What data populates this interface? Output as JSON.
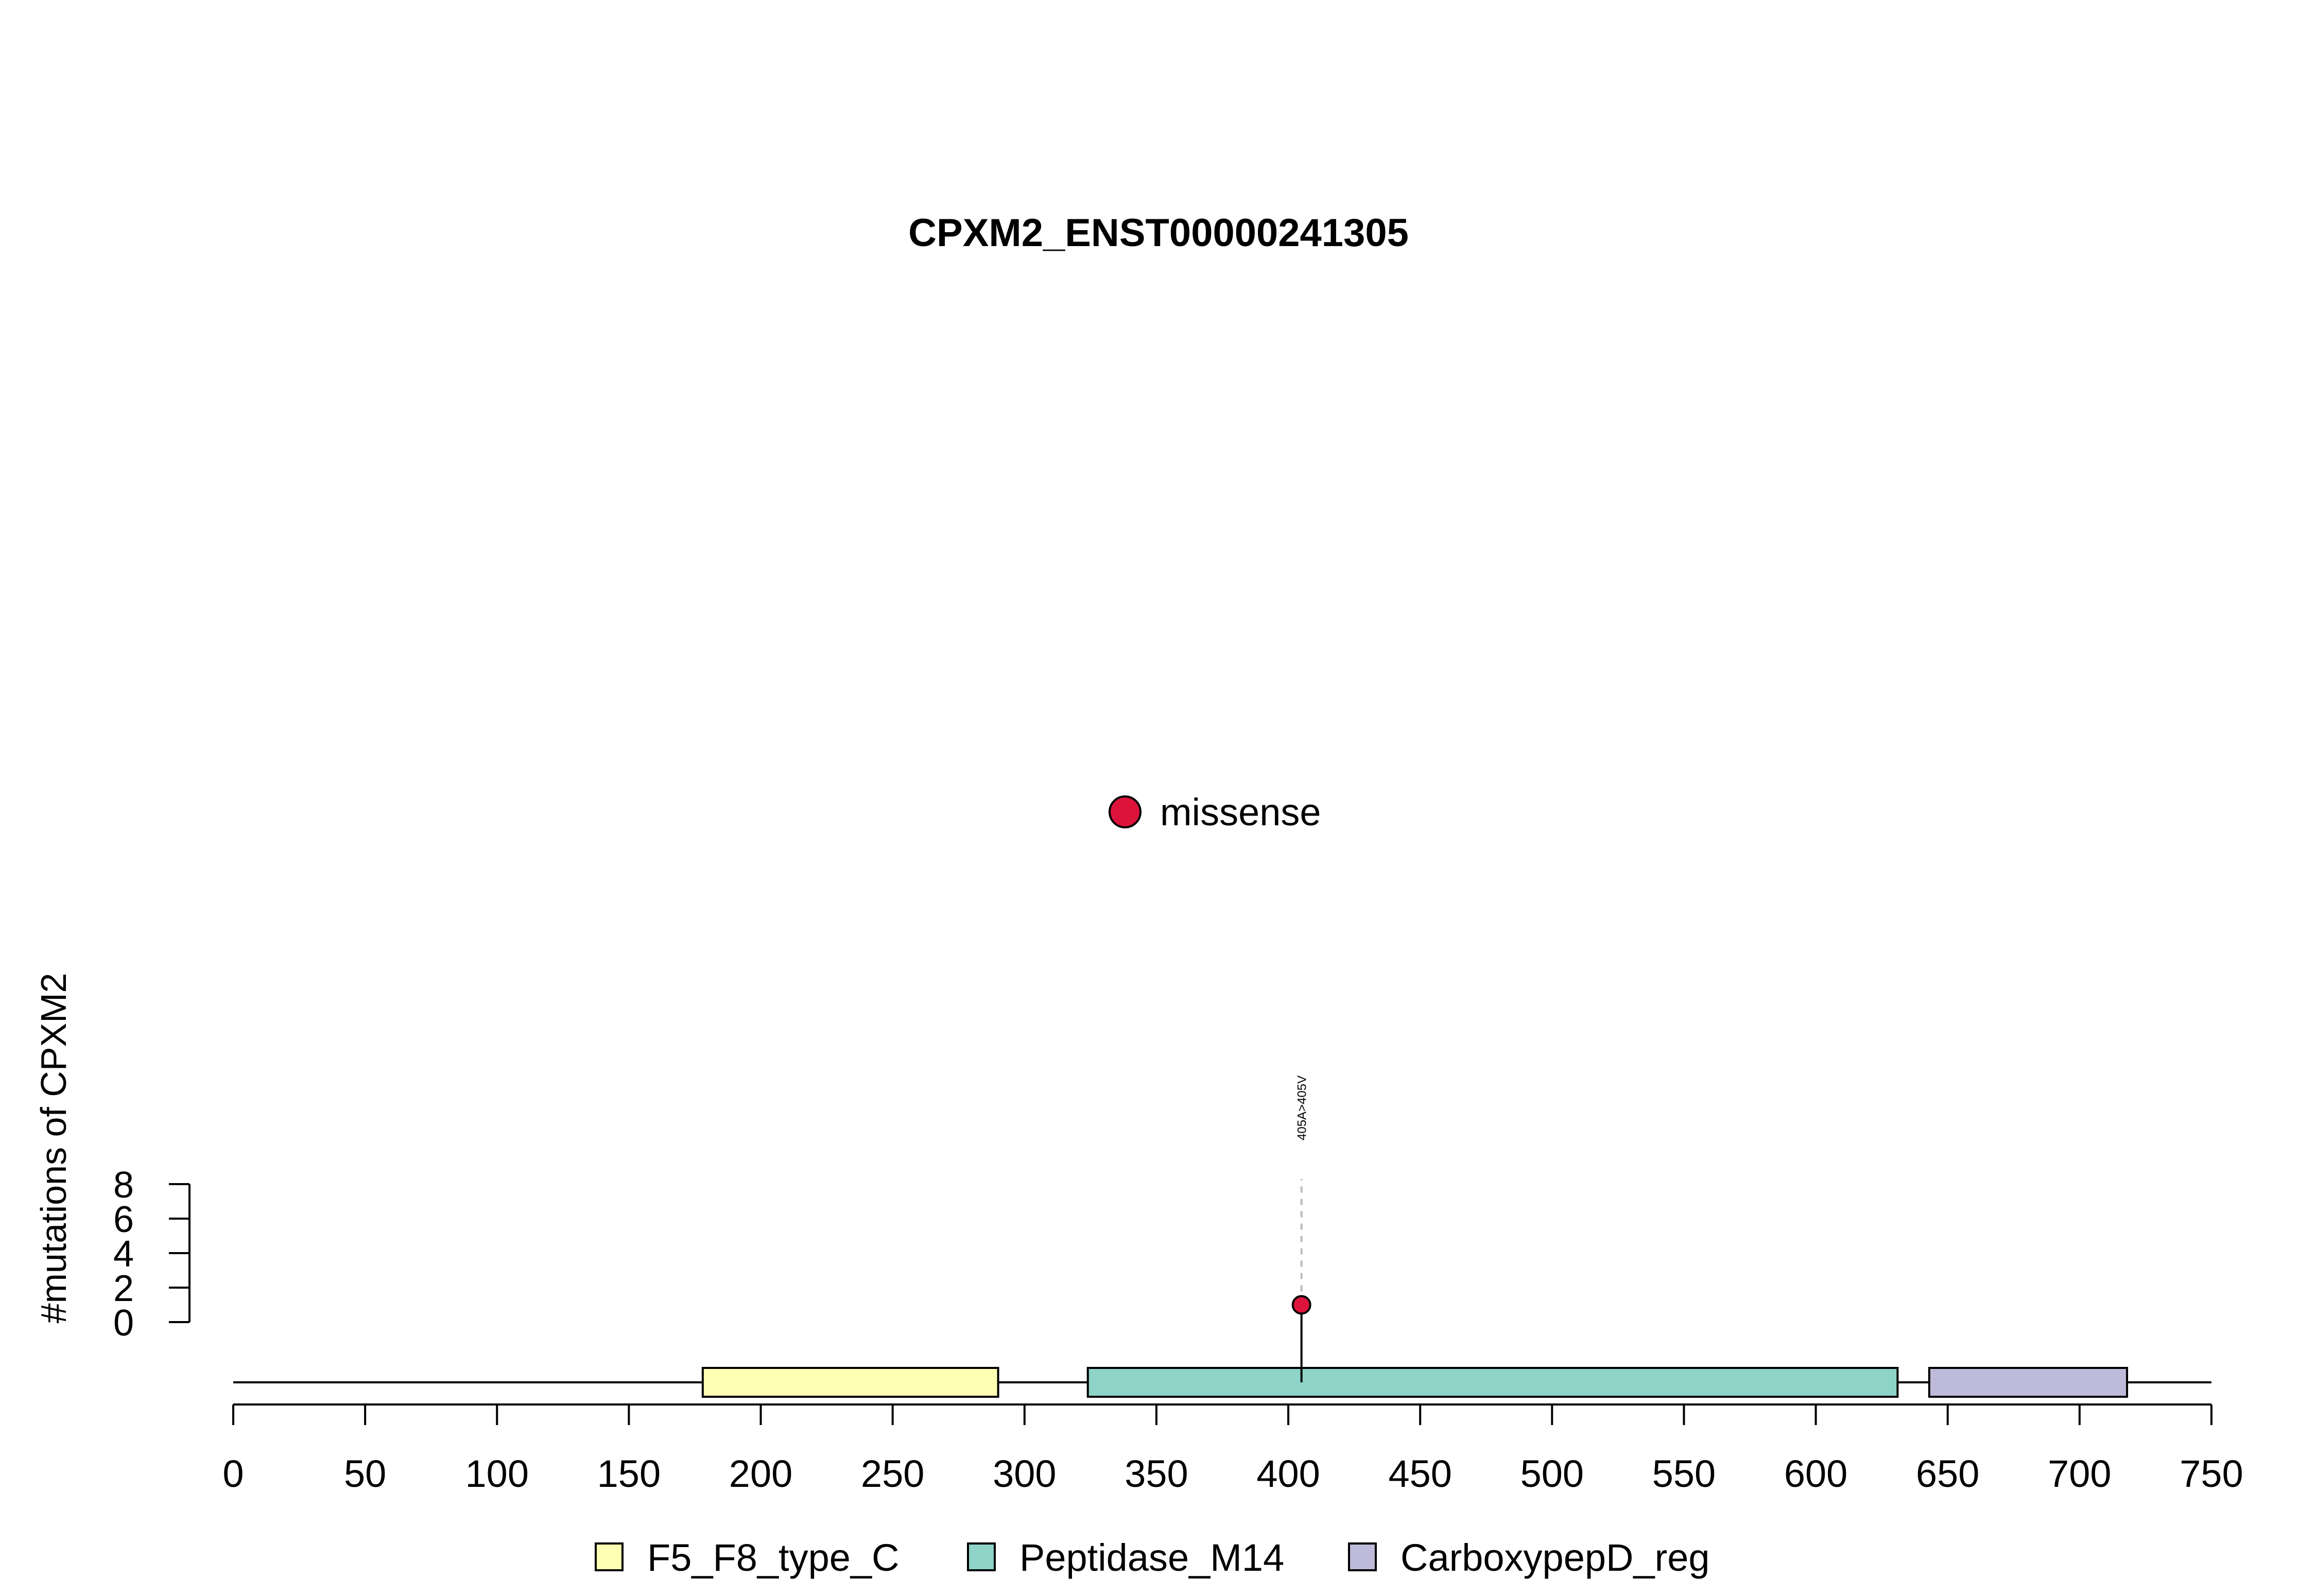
{
  "chart_data": {
    "type": "lollipop",
    "title": "CPXM2_ENST00000241305",
    "ylabel": "#mutations of CPXM2",
    "xlim": [
      0,
      750
    ],
    "x_ticks": [
      0,
      50,
      100,
      150,
      200,
      250,
      300,
      350,
      400,
      450,
      500,
      550,
      600,
      650,
      700,
      750
    ],
    "ylim": [
      0,
      8
    ],
    "y_ticks": [
      0,
      2,
      4,
      6,
      8
    ],
    "protein_length": 750,
    "domains": [
      {
        "name": "F5_F8_type_C",
        "start": 178,
        "end": 290,
        "color": "#FFFFB3"
      },
      {
        "name": "Peptidase_M14",
        "start": 324,
        "end": 631,
        "color": "#8DD3C7"
      },
      {
        "name": "CarboxypepD_reg",
        "start": 643,
        "end": 718,
        "color": "#BEBADA"
      }
    ],
    "mutations": [
      {
        "position": 405,
        "count": 1,
        "label": "405A>405V",
        "type": "missense",
        "color": "#DC143C"
      }
    ],
    "mutation_legend": [
      {
        "name": "missense",
        "color": "#DC143C"
      }
    ],
    "domain_legend_position": "bottom",
    "mutation_legend_position": "top-center",
    "grid": false
  }
}
